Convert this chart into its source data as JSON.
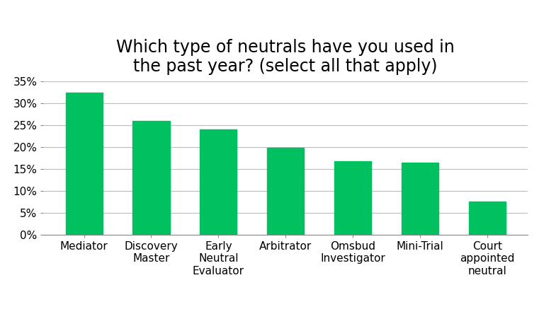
{
  "title": "Which type of neutrals have you used in\nthe past year? (select all that apply)",
  "categories": [
    "Mediator",
    "Discovery\nMaster",
    "Early\nNeutral\nEvaluator",
    "Arbitrator",
    "Omsbud\nInvestigator",
    "Mini-Trial",
    "Court\nappointed\nneutral"
  ],
  "values": [
    32.5,
    26.0,
    24.0,
    19.9,
    16.8,
    16.4,
    7.6
  ],
  "bar_color": "#00C060",
  "ylim": [
    0,
    35
  ],
  "yticks": [
    0,
    5,
    10,
    15,
    20,
    25,
    30,
    35
  ],
  "background_color": "#ffffff",
  "title_fontsize": 17,
  "tick_fontsize": 11,
  "bar_width": 0.55
}
